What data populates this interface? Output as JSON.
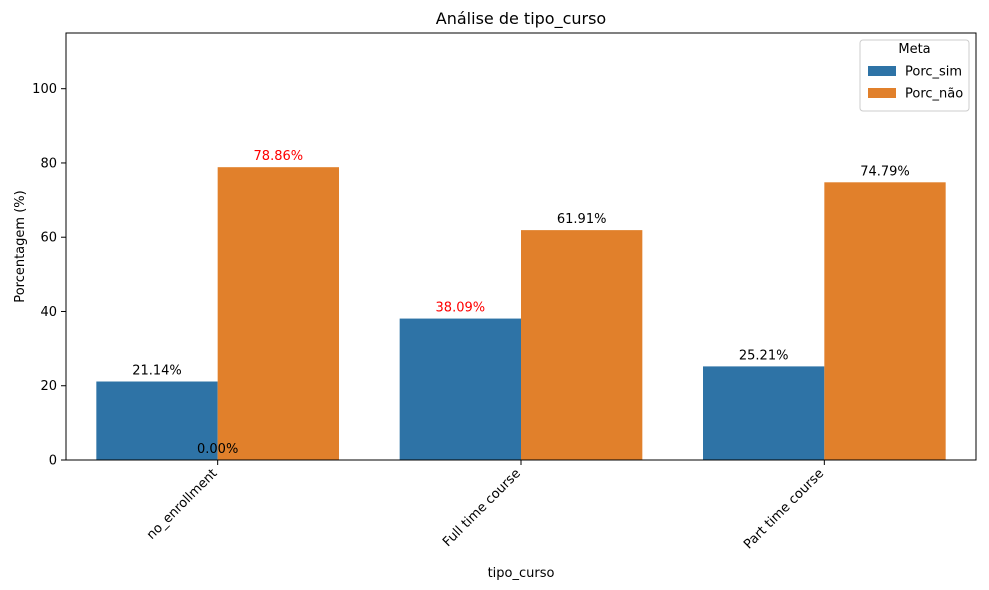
{
  "chart_data": {
    "type": "bar",
    "title": "Análise de tipo_curso",
    "xlabel": "tipo_curso",
    "ylabel": "Porcentagem (%)",
    "ylim": [
      0,
      115
    ],
    "yticks": [
      0,
      20,
      40,
      60,
      80,
      100
    ],
    "categories": [
      "no_enrollment",
      "Full time course",
      "Part time course"
    ],
    "series": [
      {
        "name": "Porc_sim",
        "color": "#2e73a6",
        "values": [
          21.14,
          38.09,
          25.21
        ],
        "labels": [
          "21.14%",
          "38.09%",
          "25.21%"
        ],
        "label_colors": [
          "#000000",
          "#ff0000",
          "#000000"
        ]
      },
      {
        "name": "Porc_não",
        "color": "#e1802b",
        "values": [
          78.86,
          61.91,
          74.79
        ],
        "labels": [
          "78.86%",
          "61.91%",
          "74.79%"
        ],
        "label_colors": [
          "#ff0000",
          "#000000",
          "#000000"
        ]
      }
    ],
    "extra_label": {
      "text": "0.00%",
      "value": 0,
      "category": "no_enrollment",
      "color": "#000000"
    },
    "legend": {
      "title": "Meta",
      "position": "top-right"
    },
    "grid": false
  }
}
